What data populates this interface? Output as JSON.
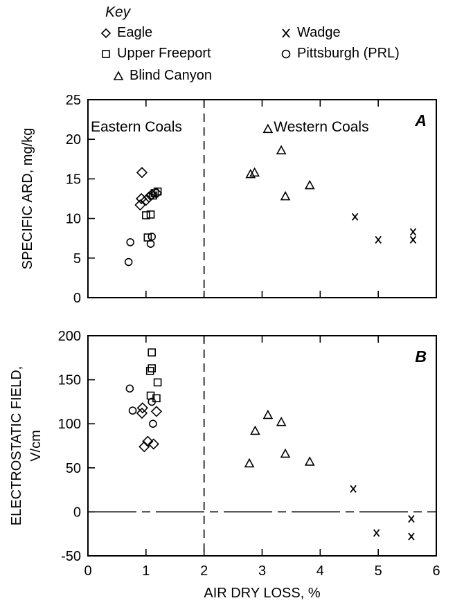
{
  "key": {
    "title": "Key",
    "items": [
      {
        "label": "Eagle",
        "marker": "diamond"
      },
      {
        "label": "Upper Freeport",
        "marker": "square"
      },
      {
        "label": "Blind Canyon",
        "marker": "triangle"
      },
      {
        "label": "Wadge",
        "marker": "x"
      },
      {
        "label": "Pittsburgh (PRL)",
        "marker": "circle"
      }
    ]
  },
  "chart_data": [
    {
      "type": "scatter",
      "panel_label": "A",
      "ylabel": "SPECIFIC ARD, mg/kg",
      "xlabel": "",
      "xlim": [
        0,
        6
      ],
      "ylim": [
        0,
        25
      ],
      "xticks": [
        0,
        1,
        2,
        3,
        4,
        5,
        6
      ],
      "yticks": [
        0,
        5,
        10,
        15,
        20,
        25
      ],
      "divider_x": 2,
      "region_labels": [
        "Eastern Coals",
        "Western Coals"
      ],
      "series": [
        {
          "name": "Eagle",
          "marker": "diamond",
          "points": [
            [
              0.93,
              15.8
            ],
            [
              0.92,
              12.5
            ],
            [
              0.9,
              11.7
            ],
            [
              1.0,
              12.3
            ],
            [
              1.05,
              12.7
            ],
            [
              1.1,
              13.0
            ],
            [
              1.18,
              13.2
            ]
          ]
        },
        {
          "name": "Upper Freeport",
          "marker": "square",
          "points": [
            [
              1.2,
              13.4
            ],
            [
              1.15,
              13.2
            ],
            [
              1.12,
              12.9
            ],
            [
              1.0,
              10.4
            ],
            [
              1.08,
              10.5
            ],
            [
              1.03,
              7.6
            ]
          ]
        },
        {
          "name": "Pittsburgh (PRL)",
          "marker": "circle",
          "points": [
            [
              0.7,
              4.5
            ],
            [
              0.73,
              7.0
            ],
            [
              1.1,
              7.7
            ],
            [
              1.08,
              6.8
            ]
          ]
        },
        {
          "name": "Blind Canyon",
          "marker": "triangle",
          "points": [
            [
              2.8,
              15.6
            ],
            [
              2.87,
              15.8
            ],
            [
              3.1,
              21.3
            ],
            [
              3.33,
              18.6
            ],
            [
              3.4,
              12.8
            ],
            [
              3.82,
              14.2
            ]
          ]
        },
        {
          "name": "Wadge",
          "marker": "x",
          "points": [
            [
              4.6,
              10.2
            ],
            [
              5.0,
              7.3
            ],
            [
              5.6,
              8.3
            ],
            [
              5.6,
              7.3
            ]
          ]
        }
      ]
    },
    {
      "type": "scatter",
      "panel_label": "B",
      "ylabel": "ELECTROSTATIC FIELD, V/cm",
      "xlabel": "AIR DRY LOSS, %",
      "xlim": [
        0,
        6
      ],
      "ylim": [
        -50,
        200
      ],
      "xticks": [
        0,
        1,
        2,
        3,
        4,
        5,
        6
      ],
      "yticks": [
        -50,
        0,
        50,
        100,
        150,
        200
      ],
      "divider_x": 2,
      "zero_line": true,
      "series": [
        {
          "name": "Upper Freeport",
          "marker": "square",
          "points": [
            [
              1.1,
              181
            ],
            [
              1.1,
              163
            ],
            [
              1.07,
              160
            ],
            [
              1.2,
              147
            ],
            [
              1.08,
              132
            ],
            [
              1.18,
              129
            ]
          ]
        },
        {
          "name": "Pittsburgh (PRL)",
          "marker": "circle",
          "points": [
            [
              0.72,
              140
            ],
            [
              0.77,
              115
            ],
            [
              1.1,
              125
            ],
            [
              1.12,
              100
            ]
          ]
        },
        {
          "name": "Eagle",
          "marker": "diamond",
          "points": [
            [
              0.94,
              118
            ],
            [
              0.93,
              112
            ],
            [
              1.18,
              114
            ],
            [
              1.03,
              80
            ],
            [
              0.97,
              74
            ],
            [
              1.13,
              77
            ]
          ]
        },
        {
          "name": "Blind Canyon",
          "marker": "triangle",
          "points": [
            [
              2.78,
              55
            ],
            [
              2.88,
              92
            ],
            [
              3.1,
              110
            ],
            [
              3.33,
              102
            ],
            [
              3.4,
              66
            ],
            [
              3.82,
              57
            ]
          ]
        },
        {
          "name": "Wadge",
          "marker": "x",
          "points": [
            [
              4.57,
              26
            ],
            [
              4.97,
              -24
            ],
            [
              5.57,
              -8
            ],
            [
              5.57,
              -28
            ]
          ]
        }
      ]
    }
  ]
}
